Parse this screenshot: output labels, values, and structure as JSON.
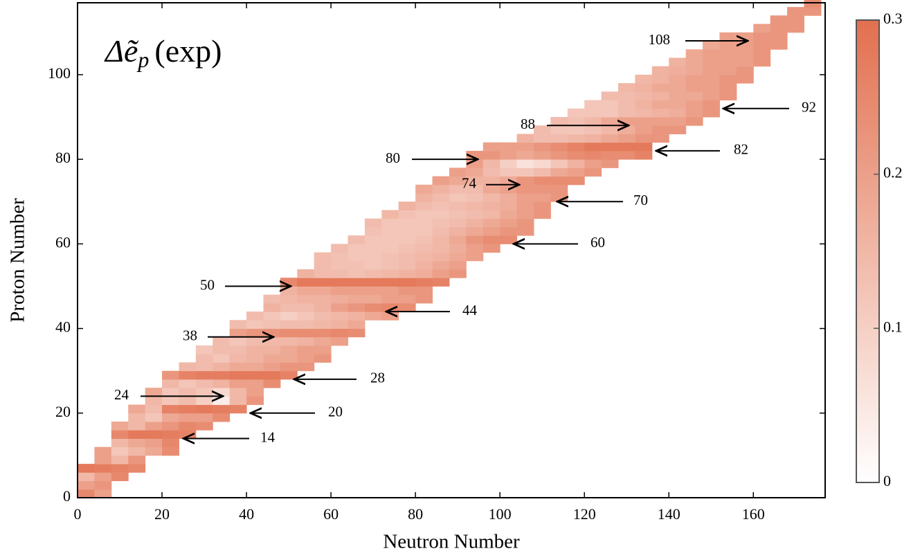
{
  "chart_data": {
    "type": "heatmap",
    "title": "Δẽ",
    "title_subscript": "p",
    "title_note": "(exp)",
    "x_label": "Neutron Number",
    "y_label": "Proton Number",
    "xlim": [
      0,
      177
    ],
    "ylim": [
      0,
      117
    ],
    "xticks": [
      0,
      20,
      40,
      60,
      80,
      100,
      120,
      140,
      160
    ],
    "yticks": [
      0,
      20,
      40,
      60,
      80,
      100
    ],
    "cell_size": [
      4,
      2
    ],
    "colormap": [
      "#ffffff",
      "#e2704f"
    ],
    "clim": [
      0,
      0.3
    ],
    "cticks": [
      0,
      0.1,
      0.2,
      0.3
    ],
    "annotations": [
      "108",
      "92",
      "88",
      "82",
      "80",
      "74",
      "70",
      "60",
      "50",
      "44",
      "38",
      "28",
      "24",
      "20",
      "14"
    ],
    "rows": [
      {
        "z": 0,
        "n_start": 0,
        "values": [
          0.25,
          0.2
        ]
      },
      {
        "z": 2,
        "n_start": 0,
        "values": [
          0.2,
          0.22
        ]
      },
      {
        "z": 4,
        "n_start": 0,
        "values": [
          0.15,
          0.2,
          0.25
        ]
      },
      {
        "z": 6,
        "n_start": 0,
        "values": [
          0.28,
          0.27,
          0.26,
          0.25
        ]
      },
      {
        "z": 8,
        "n_start": 4,
        "values": [
          0.2,
          0.15,
          0.22
        ]
      },
      {
        "z": 10,
        "n_start": 4,
        "values": [
          0.2,
          0.12,
          0.15,
          0.18,
          0.24
        ]
      },
      {
        "z": 12,
        "n_start": 8,
        "values": [
          0.15,
          0.18,
          0.2,
          0.25
        ]
      },
      {
        "z": 14,
        "n_start": 8,
        "values": [
          0.25,
          0.28,
          0.28,
          0.27,
          0.26
        ]
      },
      {
        "z": 16,
        "n_start": 8,
        "values": [
          0.18,
          0.15,
          0.2,
          0.22,
          0.25,
          0.24
        ]
      },
      {
        "z": 18,
        "n_start": 12,
        "values": [
          0.15,
          0.12,
          0.18,
          0.2,
          0.2,
          0.24
        ]
      },
      {
        "z": 20,
        "n_start": 12,
        "values": [
          0.18,
          0.14,
          0.26,
          0.27,
          0.28,
          0.27,
          0.26
        ]
      },
      {
        "z": 22,
        "n_start": 16,
        "values": [
          0.15,
          0.12,
          0.14,
          0.1,
          0.04,
          0.15,
          0.22
        ]
      },
      {
        "z": 24,
        "n_start": 16,
        "values": [
          0.18,
          0.12,
          0.14,
          0.12,
          0.08,
          0.15,
          0.2
        ]
      },
      {
        "z": 26,
        "n_start": 20,
        "values": [
          0.15,
          0.12,
          0.14,
          0.16,
          0.2,
          0.2,
          0.24
        ]
      },
      {
        "z": 28,
        "n_start": 20,
        "values": [
          0.22,
          0.26,
          0.27,
          0.27,
          0.28,
          0.28,
          0.28,
          0.26
        ]
      },
      {
        "z": 30,
        "n_start": 24,
        "values": [
          0.15,
          0.14,
          0.16,
          0.18,
          0.18,
          0.2,
          0.22,
          0.22
        ]
      },
      {
        "z": 32,
        "n_start": 28,
        "values": [
          0.14,
          0.12,
          0.15,
          0.16,
          0.18,
          0.18,
          0.2,
          0.22
        ]
      },
      {
        "z": 34,
        "n_start": 28,
        "values": [
          0.12,
          0.14,
          0.14,
          0.16,
          0.16,
          0.18,
          0.2,
          0.2
        ]
      },
      {
        "z": 36,
        "n_start": 32,
        "values": [
          0.14,
          0.12,
          0.14,
          0.15,
          0.15,
          0.16,
          0.18,
          0.2
        ]
      },
      {
        "z": 38,
        "n_start": 36,
        "values": [
          0.2,
          0.22,
          0.23,
          0.24,
          0.24,
          0.24,
          0.25,
          0.24
        ]
      },
      {
        "z": 40,
        "n_start": 36,
        "values": [
          0.14,
          0.12,
          0.13,
          0.14,
          0.14,
          0.15,
          0.16,
          0.18
        ]
      },
      {
        "z": 42,
        "n_start": 40,
        "values": [
          0.14,
          0.12,
          0.1,
          0.12,
          0.14,
          0.15,
          0.16,
          0.18,
          0.2
        ]
      },
      {
        "z": 44,
        "n_start": 44,
        "values": [
          0.16,
          0.14,
          0.14,
          0.16,
          0.2,
          0.22,
          0.24,
          0.25,
          0.24
        ]
      },
      {
        "z": 46,
        "n_start": 44,
        "values": [
          0.14,
          0.15,
          0.16,
          0.16,
          0.17,
          0.18,
          0.18,
          0.2,
          0.2,
          0.22
        ]
      },
      {
        "z": 48,
        "n_start": 48,
        "values": [
          0.16,
          0.18,
          0.18,
          0.2,
          0.2,
          0.2,
          0.2,
          0.22,
          0.22
        ]
      },
      {
        "z": 50,
        "n_start": 48,
        "values": [
          0.25,
          0.28,
          0.28,
          0.28,
          0.28,
          0.28,
          0.28,
          0.28,
          0.27,
          0.26
        ]
      },
      {
        "z": 52,
        "n_start": 52,
        "values": [
          0.16,
          0.14,
          0.14,
          0.13,
          0.14,
          0.15,
          0.16,
          0.17,
          0.2,
          0.22
        ]
      },
      {
        "z": 54,
        "n_start": 56,
        "values": [
          0.14,
          0.13,
          0.13,
          0.12,
          0.13,
          0.14,
          0.16,
          0.18,
          0.2
        ]
      },
      {
        "z": 56,
        "n_start": 56,
        "values": [
          0.14,
          0.13,
          0.12,
          0.12,
          0.13,
          0.14,
          0.15,
          0.16,
          0.18,
          0.2
        ]
      },
      {
        "z": 58,
        "n_start": 60,
        "values": [
          0.14,
          0.12,
          0.12,
          0.12,
          0.13,
          0.14,
          0.15,
          0.17,
          0.2,
          0.22
        ]
      },
      {
        "z": 60,
        "n_start": 64,
        "values": [
          0.14,
          0.12,
          0.12,
          0.12,
          0.13,
          0.15,
          0.18,
          0.22,
          0.24,
          0.24
        ]
      },
      {
        "z": 62,
        "n_start": 68,
        "values": [
          0.13,
          0.12,
          0.12,
          0.12,
          0.14,
          0.16,
          0.18,
          0.2,
          0.22,
          0.22
        ]
      },
      {
        "z": 64,
        "n_start": 68,
        "values": [
          0.14,
          0.12,
          0.12,
          0.12,
          0.13,
          0.14,
          0.16,
          0.18,
          0.2,
          0.22
        ]
      },
      {
        "z": 66,
        "n_start": 72,
        "values": [
          0.15,
          0.13,
          0.12,
          0.12,
          0.13,
          0.14,
          0.15,
          0.18,
          0.2,
          0.22
        ]
      },
      {
        "z": 68,
        "n_start": 76,
        "values": [
          0.16,
          0.14,
          0.13,
          0.14,
          0.15,
          0.16,
          0.17,
          0.2,
          0.22
        ]
      },
      {
        "z": 70,
        "n_start": 80,
        "values": [
          0.16,
          0.14,
          0.12,
          0.13,
          0.15,
          0.17,
          0.2,
          0.2,
          0.22
        ]
      },
      {
        "z": 72,
        "n_start": 80,
        "values": [
          0.18,
          0.16,
          0.14,
          0.14,
          0.18,
          0.2,
          0.22,
          0.22,
          0.22
        ]
      },
      {
        "z": 74,
        "n_start": 84,
        "values": [
          0.2,
          0.18,
          0.16,
          0.16,
          0.18,
          0.22,
          0.24,
          0.24,
          0.24
        ]
      },
      {
        "z": 76,
        "n_start": 88,
        "values": [
          0.2,
          0.18,
          0.14,
          0.12,
          0.12,
          0.14,
          0.18,
          0.2,
          0.22
        ]
      },
      {
        "z": 78,
        "n_start": 92,
        "values": [
          0.2,
          0.15,
          0.1,
          0.06,
          0.08,
          0.12,
          0.16,
          0.2,
          0.22
        ]
      },
      {
        "z": 80,
        "n_start": 92,
        "values": [
          0.22,
          0.22,
          0.2,
          0.18,
          0.2,
          0.22,
          0.24,
          0.25,
          0.24,
          0.24,
          0.26
        ]
      },
      {
        "z": 82,
        "n_start": 96,
        "values": [
          0.2,
          0.2,
          0.2,
          0.22,
          0.24,
          0.26,
          0.28,
          0.28,
          0.28,
          0.28
        ]
      },
      {
        "z": 84,
        "n_start": 104,
        "values": [
          0.16,
          0.14,
          0.14,
          0.15,
          0.16,
          0.18,
          0.2,
          0.22,
          0.22
        ]
      },
      {
        "z": 86,
        "n_start": 108,
        "values": [
          0.14,
          0.12,
          0.12,
          0.13,
          0.15,
          0.17,
          0.2,
          0.22,
          0.22
        ]
      },
      {
        "z": 88,
        "n_start": 112,
        "values": [
          0.14,
          0.13,
          0.15,
          0.18,
          0.2,
          0.2,
          0.2,
          0.2,
          0.22
        ]
      },
      {
        "z": 90,
        "n_start": 116,
        "values": [
          0.12,
          0.12,
          0.12,
          0.14,
          0.15,
          0.16,
          0.17,
          0.2,
          0.22
        ]
      },
      {
        "z": 92,
        "n_start": 120,
        "values": [
          0.12,
          0.12,
          0.14,
          0.16,
          0.18,
          0.18,
          0.2,
          0.22
        ]
      },
      {
        "z": 94,
        "n_start": 124,
        "values": [
          0.14,
          0.14,
          0.15,
          0.16,
          0.18,
          0.18,
          0.2,
          0.22
        ]
      },
      {
        "z": 96,
        "n_start": 128,
        "values": [
          0.15,
          0.16,
          0.18,
          0.18,
          0.2,
          0.2,
          0.22
        ]
      },
      {
        "z": 98,
        "n_start": 132,
        "values": [
          0.15,
          0.16,
          0.18,
          0.2,
          0.2,
          0.22,
          0.22
        ]
      },
      {
        "z": 100,
        "n_start": 136,
        "values": [
          0.16,
          0.17,
          0.18,
          0.2,
          0.2,
          0.22
        ]
      },
      {
        "z": 102,
        "n_start": 140,
        "values": [
          0.16,
          0.18,
          0.2,
          0.2,
          0.2,
          0.22
        ]
      },
      {
        "z": 104,
        "n_start": 144,
        "values": [
          0.18,
          0.2,
          0.2,
          0.2,
          0.22
        ]
      },
      {
        "z": 106,
        "n_start": 148,
        "values": [
          0.18,
          0.2,
          0.2,
          0.22,
          0.22
        ]
      },
      {
        "z": 108,
        "n_start": 152,
        "values": [
          0.2,
          0.2,
          0.22,
          0.22
        ]
      },
      {
        "z": 110,
        "n_start": 160,
        "values": [
          0.2,
          0.22,
          0.22
        ]
      },
      {
        "z": 112,
        "n_start": 164,
        "values": [
          0.22,
          0.22
        ]
      },
      {
        "z": 114,
        "n_start": 168,
        "values": [
          0.22,
          0.22
        ]
      },
      {
        "z": 116,
        "n_start": 172,
        "values": [
          0.24
        ]
      }
    ]
  }
}
